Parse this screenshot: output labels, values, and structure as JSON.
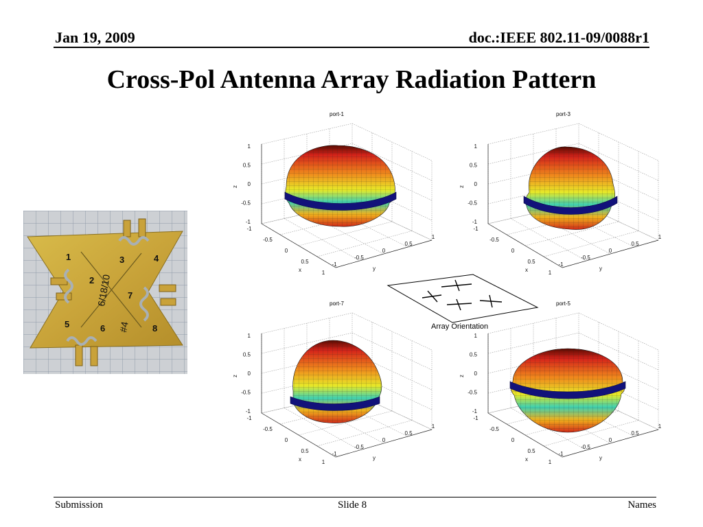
{
  "header": {
    "date": "Jan 19, 2009",
    "doc_id": "doc.:IEEE 802.11-09/0088r1"
  },
  "slide": {
    "title": "Cross-Pol Antenna Array Radiation Pattern"
  },
  "photo": {
    "port_labels": [
      "1",
      "2",
      "3",
      "4",
      "5",
      "6",
      "7",
      "8"
    ],
    "handwriting": "6/18/10",
    "hash_number": "#4"
  },
  "plots": [
    {
      "title": "port-1"
    },
    {
      "title": "port-3"
    },
    {
      "title": "port-7"
    },
    {
      "title": "port-5"
    }
  ],
  "axes": {
    "z_label": "z",
    "x_label": "x",
    "y_label": "y",
    "z_ticks": [
      "1",
      "0.5",
      "0",
      "-0.5",
      "-1"
    ],
    "x_ticks": [
      "-1",
      "-0.5",
      "0",
      "0.5",
      "1"
    ],
    "y_ticks": [
      "-1",
      "-0.5",
      "0",
      "0.5",
      "1"
    ]
  },
  "orientation": {
    "label": "Array Orientation"
  },
  "footer": {
    "left": "Submission",
    "center": "Slide 8",
    "right": "Names"
  }
}
